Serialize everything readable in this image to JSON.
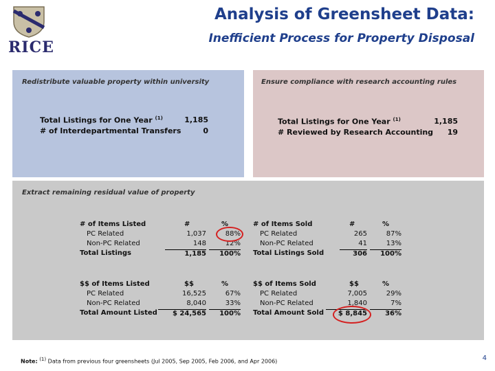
{
  "logo": {
    "text": "RICE"
  },
  "header": {
    "title": "Analysis of Greensheet Data:",
    "subtitle": "Inefficient Process for Property Disposal"
  },
  "blue_panel": {
    "heading": "Redistribute valuable property within university",
    "rows": [
      {
        "label": "Total Listings for One Year",
        "sup": "(1)",
        "value": "1,185"
      },
      {
        "label": "# of Interdepartmental Transfers",
        "sup": "",
        "value": "0"
      }
    ]
  },
  "pink_panel": {
    "heading": "Ensure compliance with research accounting rules",
    "rows": [
      {
        "label": "Total Listings for One Year",
        "sup": "(1)",
        "value": "1,185"
      },
      {
        "label": "# Reviewed by Research Accounting",
        "sup": "",
        "value": "19"
      }
    ]
  },
  "gray_panel": {
    "heading": "Extract remaining residual value of property",
    "items_listed": {
      "header": [
        "# of Items Listed",
        "#",
        "%"
      ],
      "rows": [
        [
          "PC Related",
          "1,037",
          "88%"
        ],
        [
          "Non-PC Related",
          "148",
          "12%"
        ],
        [
          "Total Listings",
          "1,185",
          "100%"
        ]
      ]
    },
    "items_sold": {
      "header": [
        "# of Items Sold",
        "#",
        "%"
      ],
      "rows": [
        [
          "PC Related",
          "265",
          "87%"
        ],
        [
          "Non-PC Related",
          "41",
          "13%"
        ],
        [
          "Total Listings Sold",
          "306",
          "100%"
        ]
      ]
    },
    "dollars_listed": {
      "header": [
        "$$ of Items Listed",
        "$$",
        "%"
      ],
      "rows": [
        [
          "PC Related",
          "16,525",
          "67%"
        ],
        [
          "Non-PC Related",
          "8,040",
          "33%"
        ],
        [
          "Total Amount Listed",
          "$ 24,565",
          "100%"
        ]
      ]
    },
    "dollars_sold": {
      "header": [
        "$$ of Items Sold",
        "$$",
        "%"
      ],
      "rows": [
        [
          "PC Related",
          "7,005",
          "29%"
        ],
        [
          "Non-PC Related",
          "1,840",
          "7%"
        ],
        [
          "Total Amount Sold",
          "$ 8,845",
          "36%"
        ]
      ]
    }
  },
  "footer": {
    "note_label": "Note:",
    "note_sup": "(1)",
    "note_text": "Data from previous four greensheets (Jul 2005, Sep 2005, Feb 2006, and Apr 2006)",
    "page_number": "4"
  },
  "colors": {
    "title": "#1f3f8c",
    "blue_panel": "#b7c4de",
    "pink_panel": "#dcc7c7",
    "gray_panel": "#c9c9c9",
    "highlight_circle": "#d42020"
  }
}
